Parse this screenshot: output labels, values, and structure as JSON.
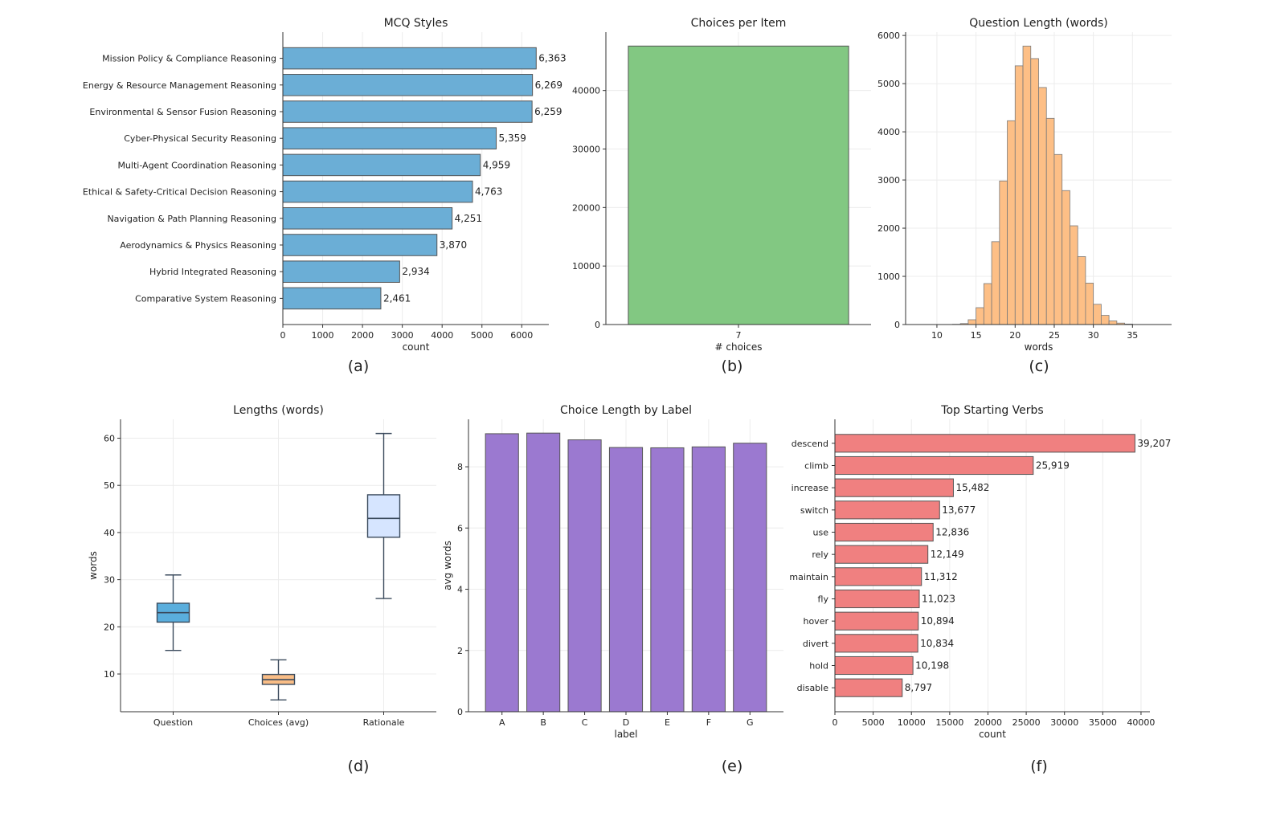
{
  "chart_data": [
    {
      "panel": "a",
      "type": "bar",
      "orientation": "horizontal",
      "title": "MCQ Styles",
      "xlabel": "count",
      "caption": "(a)",
      "categories": [
        "Mission Policy & Compliance Reasoning",
        "Energy & Resource Management Reasoning",
        "Environmental & Sensor Fusion Reasoning",
        "Cyber-Physical Security Reasoning",
        "Multi-Agent Coordination Reasoning",
        "Ethical & Safety-Critical Decision Reasoning",
        "Navigation & Path Planning Reasoning",
        "Aerodynamics & Physics Reasoning",
        "Hybrid Integrated Reasoning",
        "Comparative System Reasoning"
      ],
      "values": [
        6363,
        6269,
        6259,
        5359,
        4959,
        4763,
        4251,
        3870,
        2934,
        2461
      ],
      "value_labels": [
        "6,363",
        "6,269",
        "6,259",
        "5,359",
        "4,959",
        "4,763",
        "4,251",
        "3,870",
        "2,934",
        "2,461"
      ],
      "xlim": [
        0,
        6680
      ],
      "xticks": [
        0,
        1000,
        2000,
        3000,
        4000,
        5000,
        6000
      ],
      "color": "#6baed6"
    },
    {
      "panel": "b",
      "type": "bar",
      "title": "Choices per Item",
      "xlabel": "# choices",
      "caption": "(b)",
      "categories": [
        "7"
      ],
      "values": [
        47600
      ],
      "ylim": [
        0,
        49980
      ],
      "yticks": [
        0,
        10000,
        20000,
        30000,
        40000
      ],
      "color": "#82c882"
    },
    {
      "panel": "c",
      "type": "bar",
      "subtype": "histogram",
      "title": "Question Length (words)",
      "xlabel": "words",
      "caption": "(c)",
      "bin_start": 12,
      "bin_width": 1,
      "values": [
        5,
        20,
        100,
        350,
        850,
        1720,
        2980,
        4230,
        5370,
        5780,
        5520,
        4920,
        4280,
        3530,
        2780,
        2050,
        1410,
        860,
        420,
        190,
        75,
        30,
        10
      ],
      "xlim": [
        6,
        40
      ],
      "xticks": [
        10,
        15,
        20,
        25,
        30,
        35
      ],
      "ylim": [
        0,
        6069
      ],
      "yticks": [
        0,
        1000,
        2000,
        3000,
        4000,
        5000,
        6000
      ],
      "color": "#fdbf86"
    },
    {
      "panel": "d",
      "type": "box",
      "title": "Lengths (words)",
      "ylabel": "words",
      "caption": "(d)",
      "categories": [
        "Question",
        "Choices (avg)",
        "Rationale"
      ],
      "boxes": [
        {
          "whislo": 15,
          "q1": 21,
          "med": 23,
          "q3": 25,
          "whishi": 31,
          "color": "#5aaedd"
        },
        {
          "whislo": 4.5,
          "q1": 7.8,
          "med": 8.8,
          "q3": 9.9,
          "whishi": 13,
          "color": "#f9bd86"
        },
        {
          "whislo": 26,
          "q1": 39,
          "med": 43,
          "q3": 48,
          "whishi": 61,
          "color": "#d6e5ff"
        }
      ],
      "ylim": [
        2,
        64
      ],
      "yticks": [
        10,
        20,
        30,
        40,
        50,
        60
      ]
    },
    {
      "panel": "e",
      "type": "bar",
      "title": "Choice Length by Label",
      "xlabel": "label",
      "ylabel": "avg words",
      "caption": "(e)",
      "categories": [
        "A",
        "B",
        "C",
        "D",
        "E",
        "F",
        "G"
      ],
      "values": [
        9.08,
        9.1,
        8.88,
        8.63,
        8.62,
        8.65,
        8.77
      ],
      "ylim": [
        0,
        9.55
      ],
      "yticks": [
        0,
        2,
        4,
        6,
        8
      ],
      "color": "#9b79d0"
    },
    {
      "panel": "f",
      "type": "bar",
      "orientation": "horizontal",
      "title": "Top Starting Verbs",
      "xlabel": "count",
      "caption": "(f)",
      "categories": [
        "descend",
        "climb",
        "increase",
        "switch",
        "use",
        "rely",
        "maintain",
        "fly",
        "hover",
        "divert",
        "hold",
        "disable"
      ],
      "values": [
        39207,
        25919,
        15482,
        13677,
        12836,
        12149,
        11312,
        11023,
        10894,
        10834,
        10198,
        8797
      ],
      "value_labels": [
        "39,207",
        "25,919",
        "15,482",
        "13,677",
        "12,836",
        "12,149",
        "11,312",
        "11,023",
        "10,894",
        "10,834",
        "10,198",
        "8,797"
      ],
      "xlim": [
        0,
        41160
      ],
      "xticks": [
        0,
        5000,
        10000,
        15000,
        20000,
        25000,
        30000,
        35000,
        40000
      ],
      "color": "#f08080"
    }
  ]
}
